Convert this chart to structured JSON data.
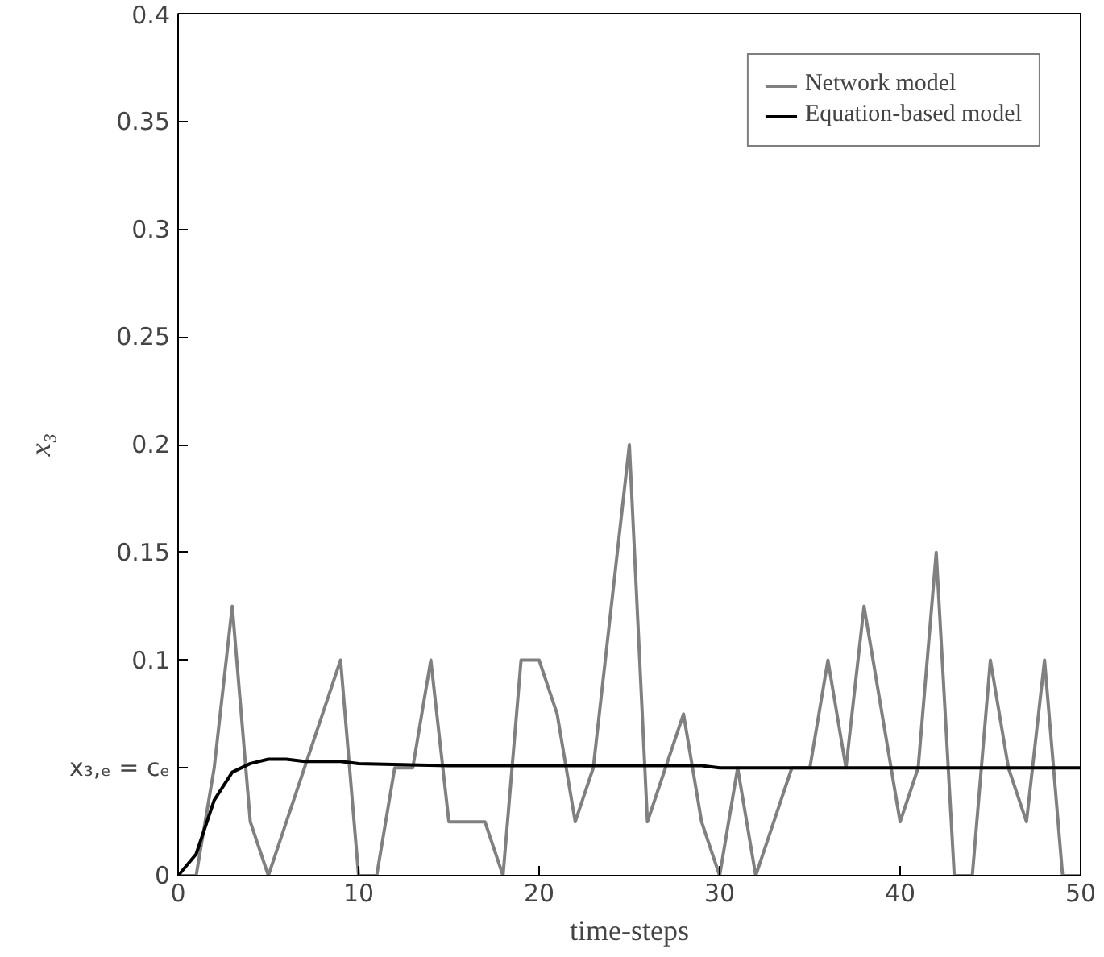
{
  "chart_data": {
    "type": "line",
    "xlabel": "time-steps",
    "ylabel": "x₃",
    "xlim": [
      0,
      50
    ],
    "ylim": [
      0,
      0.4
    ],
    "xticks": [
      0,
      10,
      20,
      30,
      40,
      50
    ],
    "yticks": [
      0,
      {
        "value": 0.05,
        "label": "x₃,ₑ = cₑ"
      },
      0.1,
      0.15,
      0.2,
      0.25,
      0.3,
      0.35,
      0.4
    ],
    "grid": false,
    "legend": "top right",
    "series": [
      {
        "name": "Network model",
        "color": "#808080",
        "x": [
          0,
          1,
          2,
          3,
          4,
          5,
          6,
          7,
          8,
          9,
          10,
          11,
          12,
          13,
          14,
          15,
          16,
          17,
          18,
          19,
          20,
          21,
          22,
          23,
          24,
          25,
          26,
          27,
          28,
          29,
          30,
          31,
          32,
          33,
          34,
          35,
          36,
          37,
          38,
          39,
          40,
          41,
          42,
          43,
          44,
          45,
          46,
          47,
          48,
          49,
          50
        ],
        "values": [
          0,
          0,
          0.05,
          0.125,
          0.025,
          0,
          0.025,
          0.05,
          0.075,
          0.1,
          0,
          0,
          0.05,
          0.05,
          0.1,
          0.025,
          0.025,
          0.025,
          0,
          0.1,
          0.1,
          0.075,
          0.025,
          0.05,
          0.125,
          0.2,
          0.025,
          0.05,
          0.075,
          0.025,
          0,
          0.05,
          0,
          0.025,
          0.05,
          0.05,
          0.1,
          0.05,
          0.125,
          0.075,
          0.025,
          0.05,
          0.15,
          0,
          0,
          0.1,
          0.05,
          0.025,
          0.1,
          0,
          0
        ]
      },
      {
        "name": "Equation-based model",
        "color": "#000000",
        "x": [
          0,
          1,
          2,
          3,
          4,
          5,
          6,
          7,
          8,
          9,
          10,
          15,
          20,
          29,
          30,
          40,
          50
        ],
        "values": [
          0,
          0.01,
          0.035,
          0.048,
          0.052,
          0.054,
          0.054,
          0.053,
          0.053,
          0.053,
          0.052,
          0.051,
          0.051,
          0.051,
          0.05,
          0.05,
          0.05
        ]
      }
    ]
  }
}
